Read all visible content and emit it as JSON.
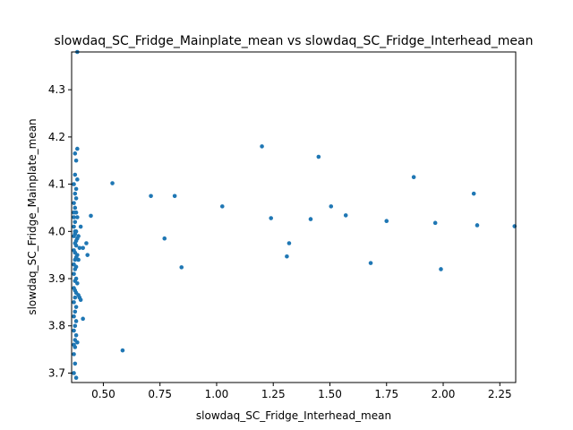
{
  "chart_data": {
    "type": "scatter",
    "title": "slowdaq_SC_Fridge_Mainplate_mean vs slowdaq_SC_Fridge_Interhead_mean",
    "xlabel": "slowdaq_SC_Fridge_Interhead_mean",
    "ylabel": "slowdaq_SC_Fridge_Mainplate_mean",
    "xlim": [
      0.36,
      2.32
    ],
    "ylim": [
      3.68,
      4.38
    ],
    "xticks": [
      0.5,
      0.75,
      1.0,
      1.25,
      1.5,
      1.75,
      2.0,
      2.25
    ],
    "xtick_labels": [
      "0.50",
      "0.75",
      "1.00",
      "1.25",
      "1.50",
      "1.75",
      "2.00",
      "2.25"
    ],
    "yticks": [
      3.7,
      3.8,
      3.9,
      4.0,
      4.1,
      4.2,
      4.3
    ],
    "ytick_labels": [
      "3.7",
      "3.8",
      "3.9",
      "4.0",
      "4.1",
      "4.2",
      "4.3"
    ],
    "color": "#1f77b4",
    "grid": false,
    "points": [
      [
        0.385,
        4.38
      ],
      [
        0.375,
        4.165
      ],
      [
        0.385,
        4.175
      ],
      [
        0.38,
        4.15
      ],
      [
        0.375,
        4.12
      ],
      [
        0.385,
        4.11
      ],
      [
        0.37,
        4.1
      ],
      [
        0.38,
        4.09
      ],
      [
        0.375,
        4.08
      ],
      [
        0.38,
        4.07
      ],
      [
        0.37,
        4.06
      ],
      [
        0.375,
        4.05
      ],
      [
        0.38,
        4.04
      ],
      [
        0.37,
        4.03
      ],
      [
        0.385,
        4.03
      ],
      [
        0.375,
        4.02
      ],
      [
        0.37,
        4.01
      ],
      [
        0.38,
        4.0
      ],
      [
        0.375,
        3.995
      ],
      [
        0.37,
        3.99
      ],
      [
        0.385,
        3.985
      ],
      [
        0.375,
        3.975
      ],
      [
        0.38,
        3.97
      ],
      [
        0.37,
        3.96
      ],
      [
        0.375,
        3.955
      ],
      [
        0.385,
        3.95
      ],
      [
        0.38,
        3.945
      ],
      [
        0.375,
        3.94
      ],
      [
        0.37,
        3.93
      ],
      [
        0.38,
        3.925
      ],
      [
        0.375,
        3.92
      ],
      [
        0.37,
        3.91
      ],
      [
        0.38,
        3.9
      ],
      [
        0.375,
        3.895
      ],
      [
        0.385,
        3.89
      ],
      [
        0.37,
        3.88
      ],
      [
        0.375,
        3.875
      ],
      [
        0.38,
        3.87
      ],
      [
        0.39,
        3.865
      ],
      [
        0.375,
        3.86
      ],
      [
        0.37,
        3.85
      ],
      [
        0.38,
        3.84
      ],
      [
        0.375,
        3.83
      ],
      [
        0.37,
        3.82
      ],
      [
        0.38,
        3.81
      ],
      [
        0.375,
        3.8
      ],
      [
        0.37,
        3.79
      ],
      [
        0.38,
        3.78
      ],
      [
        0.375,
        3.77
      ],
      [
        0.385,
        3.765
      ],
      [
        0.37,
        3.76
      ],
      [
        0.375,
        3.755
      ],
      [
        0.37,
        3.74
      ],
      [
        0.375,
        3.72
      ],
      [
        0.37,
        3.7
      ],
      [
        0.38,
        3.69
      ],
      [
        0.39,
        3.99
      ],
      [
        0.39,
        3.94
      ],
      [
        0.395,
        3.86
      ],
      [
        0.4,
        3.855
      ],
      [
        0.395,
        3.965
      ],
      [
        0.4,
        4.01
      ],
      [
        0.41,
        3.965
      ],
      [
        0.41,
        3.815
      ],
      [
        0.425,
        3.975
      ],
      [
        0.43,
        3.95
      ],
      [
        0.445,
        4.033
      ],
      [
        0.375,
        4.0
      ],
      [
        0.38,
        3.98
      ],
      [
        0.37,
        4.04
      ],
      [
        0.54,
        4.102
      ],
      [
        0.585,
        3.748
      ],
      [
        0.71,
        4.075
      ],
      [
        0.77,
        3.985
      ],
      [
        0.815,
        4.075
      ],
      [
        0.845,
        3.924
      ],
      [
        1.025,
        4.053
      ],
      [
        1.2,
        4.18
      ],
      [
        1.24,
        4.028
      ],
      [
        1.31,
        3.947
      ],
      [
        1.32,
        3.975
      ],
      [
        1.415,
        4.026
      ],
      [
        1.45,
        4.158
      ],
      [
        1.505,
        4.053
      ],
      [
        1.57,
        4.034
      ],
      [
        1.68,
        3.933
      ],
      [
        1.75,
        4.022
      ],
      [
        1.87,
        4.115
      ],
      [
        1.965,
        4.018
      ],
      [
        1.99,
        3.92
      ],
      [
        2.135,
        4.08
      ],
      [
        2.15,
        4.013
      ],
      [
        2.315,
        4.011
      ]
    ]
  }
}
